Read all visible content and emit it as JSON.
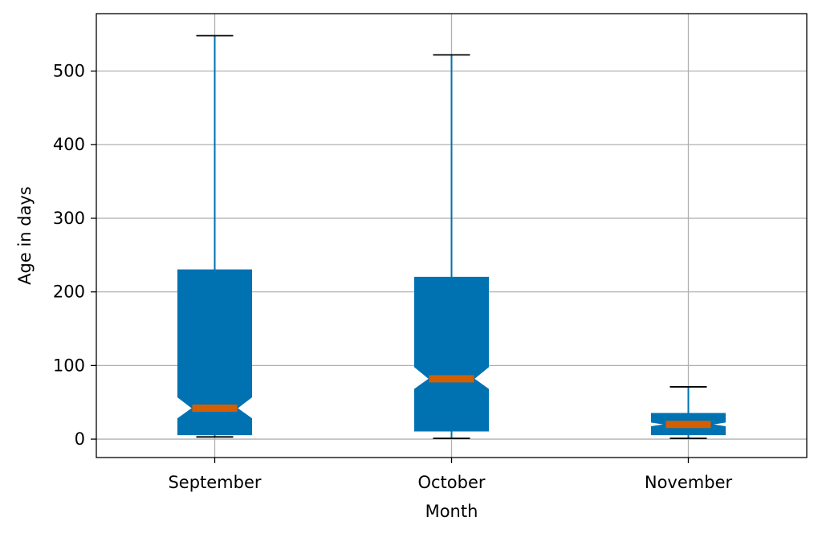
{
  "chart_data": {
    "type": "boxplot",
    "notched": true,
    "xlabel": "Month",
    "ylabel": "Age in days",
    "categories": [
      "September",
      "October",
      "November"
    ],
    "boxes": [
      {
        "category": "September",
        "whisker_low": 3,
        "q1": 6,
        "median": 42,
        "q3": 230,
        "whisker_high": 548,
        "notch_low": 28,
        "notch_high": 57
      },
      {
        "category": "October",
        "whisker_low": 1,
        "q1": 11,
        "median": 82,
        "q3": 220,
        "whisker_high": 522,
        "notch_low": 68,
        "notch_high": 98
      },
      {
        "category": "November",
        "whisker_low": 1,
        "q1": 6,
        "median": 20,
        "q3": 35,
        "whisker_high": 71,
        "notch_low": 17,
        "notch_high": 23
      }
    ],
    "ylim": [
      -25,
      578
    ],
    "yticks": [
      0,
      100,
      200,
      300,
      400,
      500
    ],
    "grid": true,
    "colors": {
      "box": "#0072b2",
      "median": "#d55e00",
      "whisker": "#0072b2",
      "cap": "#000000",
      "grid": "#b0b0b0"
    }
  }
}
